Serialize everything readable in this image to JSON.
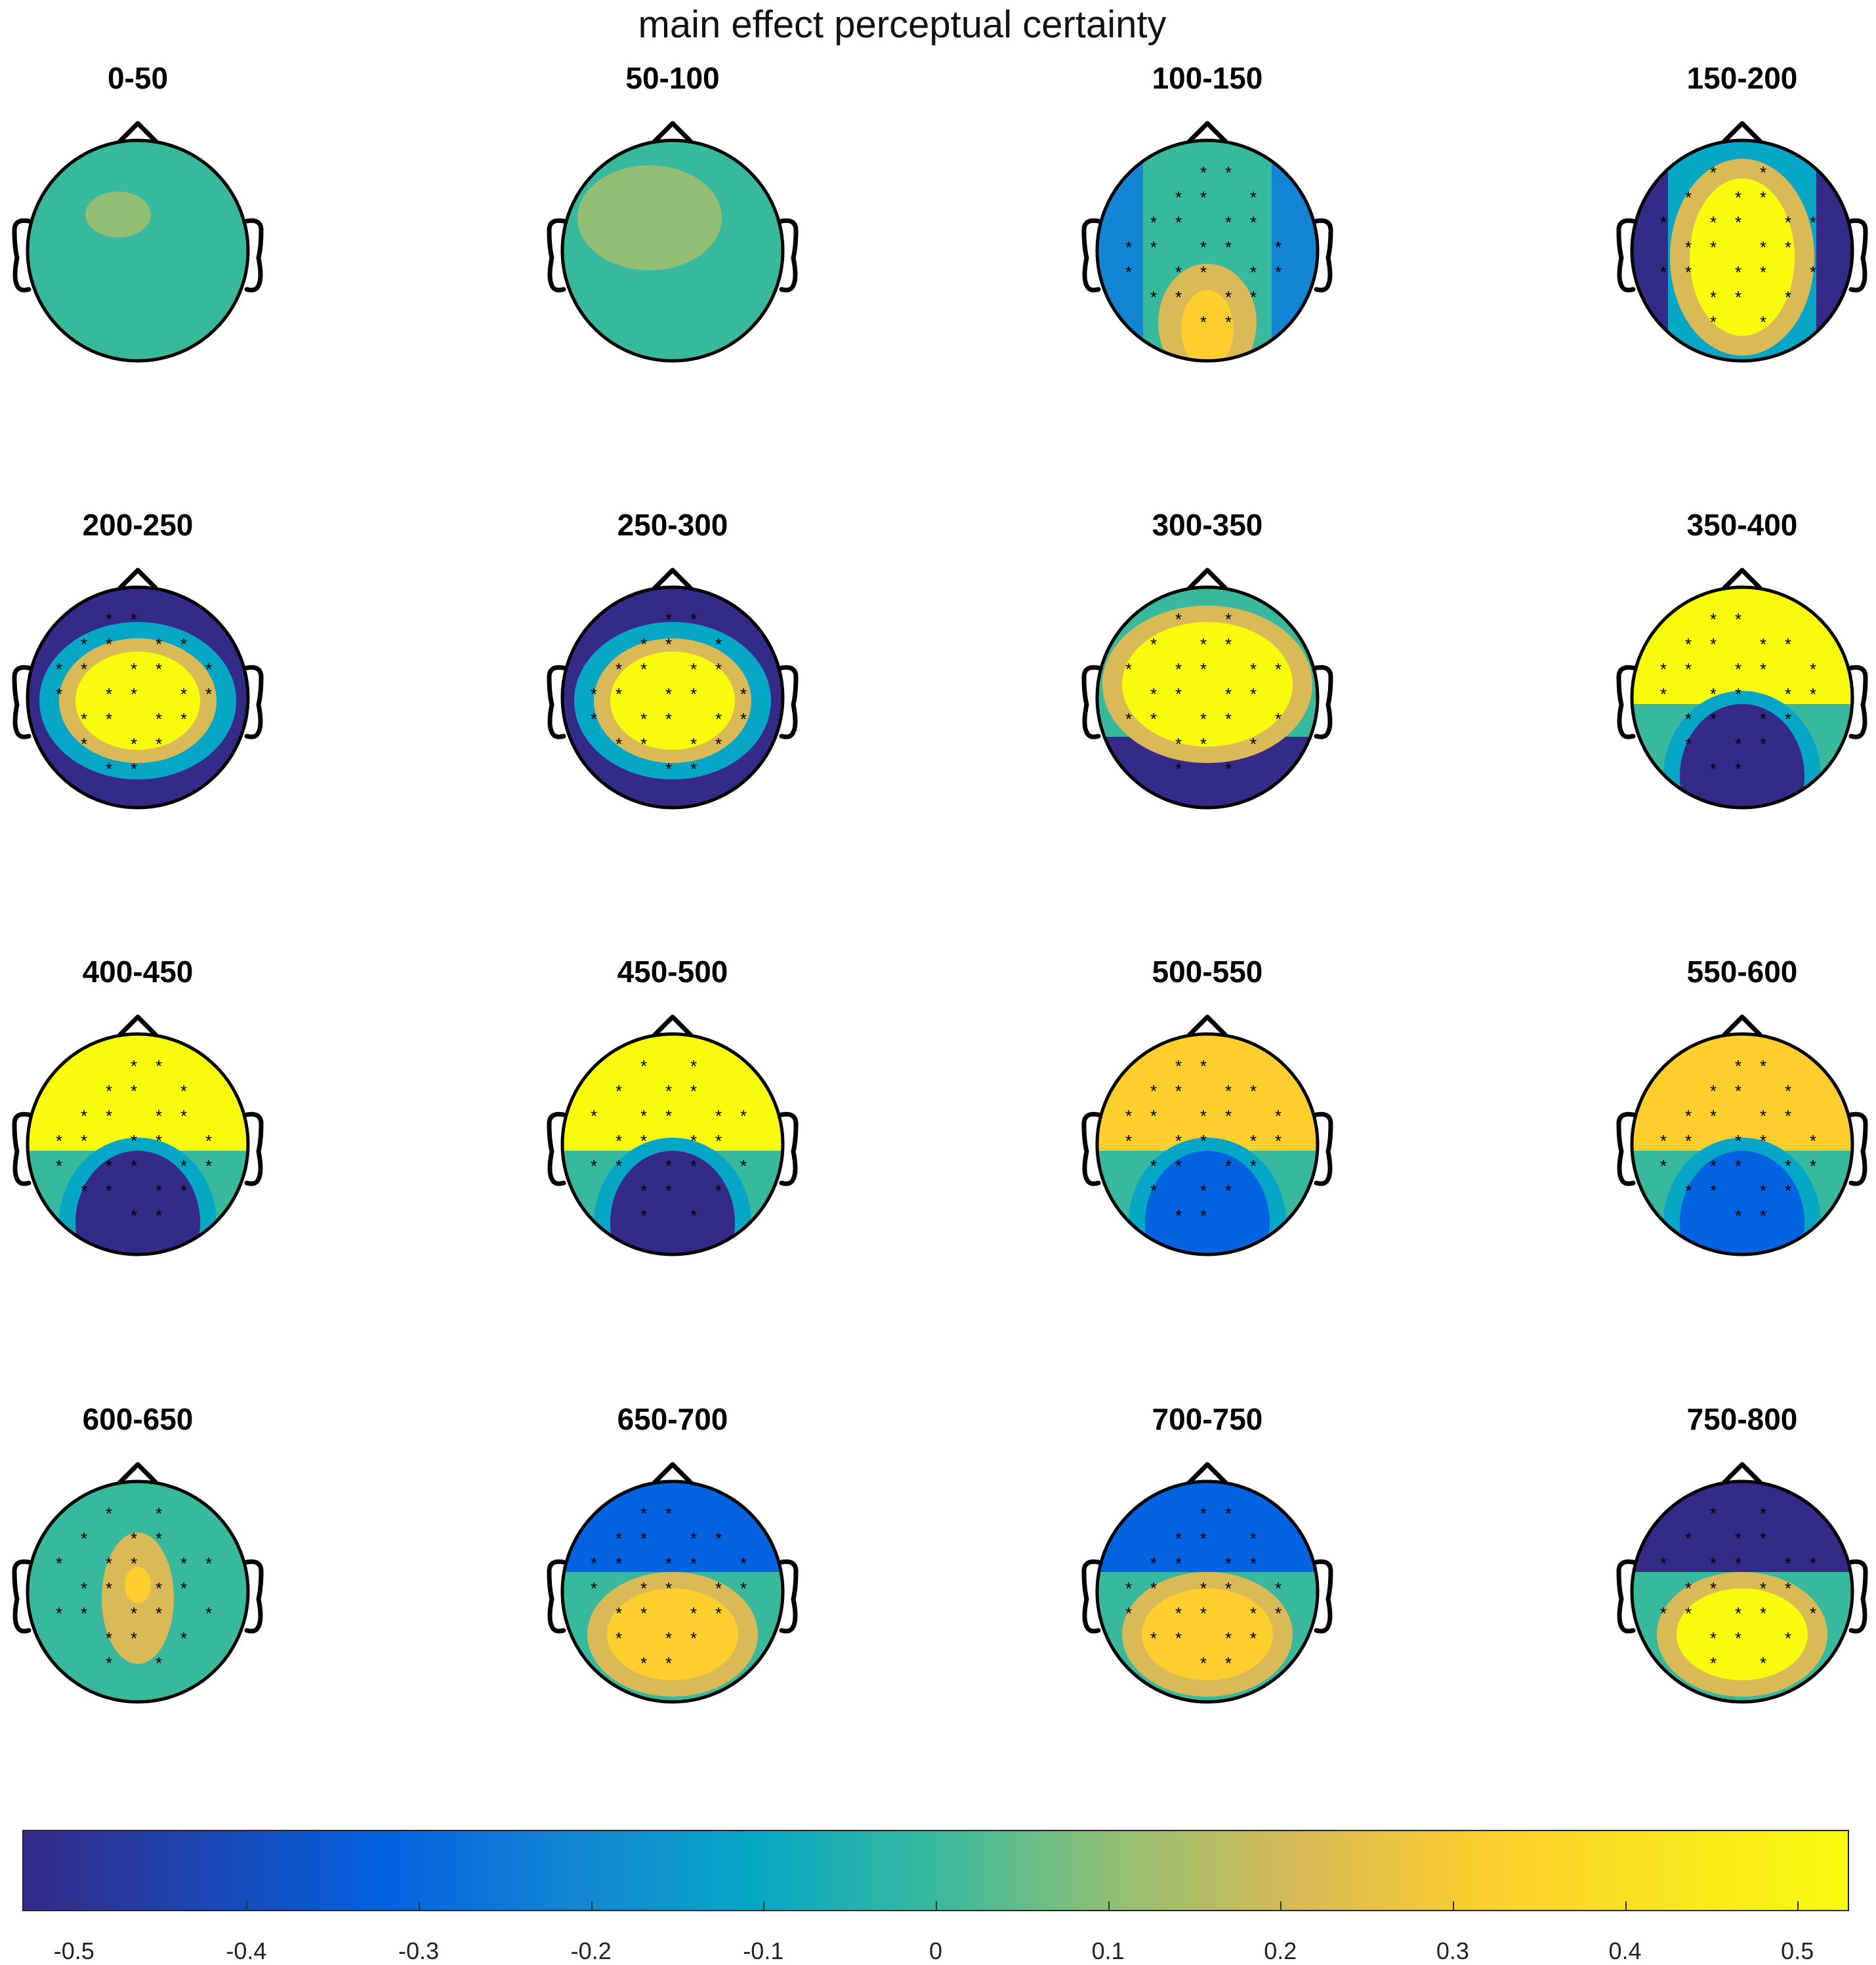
{
  "figure_title": "main effect perceptual certainty",
  "colormap": [
    "#352a87",
    "#0363e1",
    "#1485d4",
    "#06a7c6",
    "#38b99e",
    "#92bf73",
    "#d9ba56",
    "#fcce2e",
    "#f9fb0e"
  ],
  "chart_data": {
    "type": "heatmap",
    "title": "main effect perceptual certainty",
    "unit_description": "scalp topographies per time window",
    "colorbar": {
      "range": [
        -0.53,
        0.53
      ],
      "ticks": [
        -0.5,
        -0.4,
        -0.3,
        -0.2,
        -0.1,
        0,
        0.1,
        0.2,
        0.3,
        0.4,
        0.5
      ],
      "tick_labels": [
        "-0.5",
        "-0.4",
        "-0.3",
        "-0.2",
        "-0.1",
        "0",
        "0.1",
        "0.2",
        "0.3",
        "0.4",
        "0.5"
      ]
    },
    "panels": [
      {
        "label": "0-50",
        "pattern": "flat",
        "level": 0.08,
        "significant": false
      },
      {
        "label": "50-100",
        "pattern": "flat",
        "level": 0.12,
        "significant": false
      },
      {
        "label": "100-150",
        "pattern": "occipital-positive",
        "level": 0.45,
        "significant": true
      },
      {
        "label": "150-200",
        "pattern": "central-positive",
        "level": 0.5,
        "significant": true
      },
      {
        "label": "200-250",
        "pattern": "central-positive-ring-negative",
        "level": 0.5,
        "significant": true
      },
      {
        "label": "250-300",
        "pattern": "central-positive-ring-negative",
        "level": 0.5,
        "significant": true
      },
      {
        "label": "300-350",
        "pattern": "frontocentral-positive-occipital-negative",
        "level": 0.5,
        "significant": true
      },
      {
        "label": "350-400",
        "pattern": "frontal-positive-posterior-negative",
        "level": 0.5,
        "significant": true
      },
      {
        "label": "400-450",
        "pattern": "frontal-positive-posterior-negative",
        "level": 0.5,
        "significant": true
      },
      {
        "label": "450-500",
        "pattern": "frontal-positive-posterior-negative",
        "level": 0.5,
        "significant": true
      },
      {
        "label": "500-550",
        "pattern": "frontal-positive-posterior-negative",
        "level": 0.45,
        "significant": true
      },
      {
        "label": "550-600",
        "pattern": "frontal-positive-posterior-negative",
        "level": 0.35,
        "significant": true
      },
      {
        "label": "600-650",
        "pattern": "central-weak-positive",
        "level": 0.4,
        "significant": true
      },
      {
        "label": "650-700",
        "pattern": "frontal-negative-posterior-positive",
        "level": 0.4,
        "significant": true
      },
      {
        "label": "700-750",
        "pattern": "frontal-negative-posterior-positive",
        "level": 0.45,
        "significant": true
      },
      {
        "label": "750-800",
        "pattern": "frontal-negative-posterior-positive",
        "level": 0.5,
        "significant": true
      }
    ]
  }
}
